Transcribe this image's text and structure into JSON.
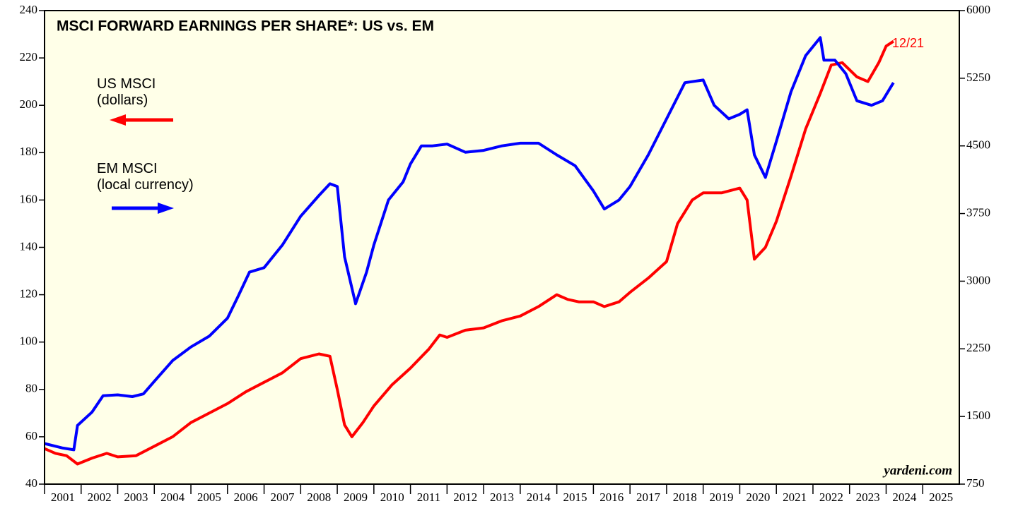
{
  "chart_data": {
    "type": "line",
    "title": "MSCI FORWARD EARNINGS PER SHARE*: US vs. EM",
    "annotations": [
      "12/21"
    ],
    "source": "yardeni.com",
    "xlim": [
      2001,
      2026
    ],
    "xticks": [
      2001,
      2002,
      2003,
      2004,
      2005,
      2006,
      2007,
      2008,
      2009,
      2010,
      2011,
      2012,
      2013,
      2014,
      2015,
      2016,
      2017,
      2018,
      2019,
      2020,
      2021,
      2022,
      2023,
      2024,
      2025
    ],
    "ylim": [
      40,
      240
    ],
    "yticks": [
      40,
      60,
      80,
      100,
      120,
      140,
      160,
      180,
      200,
      220,
      240
    ],
    "y2lim": [
      750,
      6000
    ],
    "y2ticks": [
      750,
      1500,
      2250,
      3000,
      3750,
      4500,
      5250,
      6000
    ],
    "series": [
      {
        "name": "US MSCI\n(dollars)",
        "color": "#ff0000",
        "axis": "y",
        "x": [
          2001.0,
          2001.3,
          2001.6,
          2001.9,
          2002.3,
          2002.7,
          2003.0,
          2003.5,
          2004.0,
          2004.5,
          2005.0,
          2005.5,
          2006.0,
          2006.5,
          2007.0,
          2007.5,
          2008.0,
          2008.5,
          2008.8,
          2009.0,
          2009.2,
          2009.4,
          2009.7,
          2010.0,
          2010.5,
          2011.0,
          2011.5,
          2011.8,
          2012.0,
          2012.5,
          2013.0,
          2013.5,
          2014.0,
          2014.5,
          2015.0,
          2015.3,
          2015.6,
          2016.0,
          2016.3,
          2016.7,
          2017.0,
          2017.5,
          2018.0,
          2018.3,
          2018.7,
          2019.0,
          2019.5,
          2020.0,
          2020.2,
          2020.4,
          2020.7,
          2021.0,
          2021.4,
          2021.8,
          2022.2,
          2022.5,
          2022.8,
          2023.2,
          2023.5,
          2023.8,
          2024.0,
          2024.2
        ],
        "values": [
          55,
          53,
          52,
          48.5,
          51,
          53,
          51.5,
          52,
          56,
          60,
          66,
          70,
          74,
          79,
          83,
          87,
          93,
          95,
          94,
          80,
          65,
          60,
          66,
          73,
          82,
          89,
          97,
          103,
          102,
          105,
          106,
          109,
          111,
          115,
          120,
          118,
          117,
          117,
          115,
          117,
          121,
          127,
          134,
          150,
          160,
          163,
          163,
          165,
          160,
          135,
          140,
          151,
          170,
          190,
          205,
          217,
          218,
          212,
          210,
          218,
          225,
          227
        ]
      },
      {
        "name": "EM MSCI\n(local currency)",
        "color": "#0000ff",
        "axis": "y2",
        "x": [
          2001.0,
          2001.5,
          2001.8,
          2001.9,
          2002.3,
          2002.6,
          2003.0,
          2003.4,
          2003.7,
          2004.0,
          2004.5,
          2005.0,
          2005.5,
          2006.0,
          2006.3,
          2006.6,
          2007.0,
          2007.5,
          2008.0,
          2008.5,
          2008.8,
          2009.0,
          2009.2,
          2009.5,
          2009.8,
          2010.0,
          2010.4,
          2010.8,
          2011.0,
          2011.3,
          2011.6,
          2012.0,
          2012.5,
          2013.0,
          2013.5,
          2014.0,
          2014.5,
          2015.0,
          2015.5,
          2016.0,
          2016.3,
          2016.7,
          2017.0,
          2017.5,
          2018.0,
          2018.5,
          2019.0,
          2019.3,
          2019.7,
          2020.0,
          2020.2,
          2020.4,
          2020.7,
          2021.0,
          2021.4,
          2021.8,
          2022.2,
          2022.3,
          2022.6,
          2022.9,
          2023.2,
          2023.6,
          2023.9,
          2024.2
        ],
        "values": [
          1200,
          1150,
          1130,
          1400,
          1550,
          1730,
          1740,
          1720,
          1750,
          1890,
          2120,
          2270,
          2390,
          2590,
          2840,
          3100,
          3150,
          3400,
          3720,
          3950,
          4080,
          4050,
          3270,
          2750,
          3100,
          3400,
          3900,
          4100,
          4300,
          4500,
          4500,
          4520,
          4430,
          4450,
          4500,
          4530,
          4530,
          4400,
          4280,
          4000,
          3800,
          3900,
          4050,
          4400,
          4800,
          5200,
          5230,
          4950,
          4800,
          4850,
          4900,
          4400,
          4150,
          4550,
          5100,
          5500,
          5700,
          5450,
          5450,
          5300,
          5000,
          4950,
          5000,
          5200
        ]
      }
    ]
  }
}
